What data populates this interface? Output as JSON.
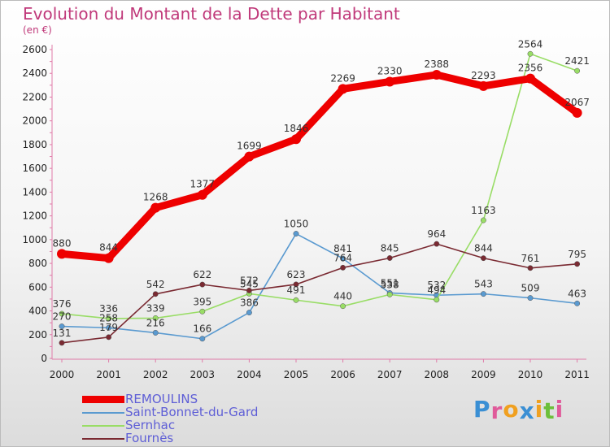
{
  "title": "Evolution du Montant de la Dette par Habitant",
  "subtitle": "(en €)",
  "logo": {
    "text": "Proxiti",
    "letter_colors": [
      "#3a8fd4",
      "#e05a9a",
      "#f0a020",
      "#3a8fd4",
      "#f0a020",
      "#6cbf3a",
      "#e05a9a"
    ]
  },
  "chart_data": {
    "type": "line",
    "x": [
      "2000",
      "2001",
      "2002",
      "2003",
      "2004",
      "2005",
      "2006",
      "2007",
      "2008",
      "2009",
      "2010",
      "2011"
    ],
    "ylim": [
      0,
      2600
    ],
    "yticks": [
      "0",
      "200",
      "400",
      "600",
      "800",
      "1000",
      "1200",
      "1400",
      "1600",
      "1800",
      "2000",
      "2200",
      "2400",
      "2600"
    ],
    "grid": false,
    "legend_position": "bottom-left",
    "series": [
      {
        "name": "REMOULINS",
        "color": "#ee0000",
        "values": [
          880,
          844,
          1268,
          1377,
          1699,
          1846,
          2269,
          2330,
          2388,
          2293,
          2356,
          2067
        ],
        "labels": [
          "880",
          "844",
          "1268",
          "1377",
          "1699",
          "1846",
          "2269",
          "2330",
          "2388",
          "2293",
          "2356",
          "2067"
        ]
      },
      {
        "name": "Saint-Bonnet-du-Gard",
        "color": "#5a9ad0",
        "values": [
          270,
          258,
          216,
          166,
          386,
          1050,
          841,
          551,
          532,
          543,
          509,
          463
        ],
        "labels": [
          "270",
          "258",
          "216",
          "166",
          "386",
          "1050",
          "841",
          "551",
          "532",
          "543",
          "509",
          "463"
        ]
      },
      {
        "name": "Sernhac",
        "color": "#99dd66",
        "values": [
          376,
          336,
          339,
          395,
          545,
          491,
          440,
          538,
          494,
          1163,
          2564,
          2421
        ],
        "labels": [
          "376",
          "336",
          "339",
          "395",
          "545",
          "491",
          "440",
          "538",
          "494",
          "1163",
          "2564",
          "2421"
        ]
      },
      {
        "name": "Fournès",
        "color": "#7a2a32",
        "values": [
          131,
          179,
          542,
          622,
          572,
          623,
          764,
          845,
          964,
          844,
          761,
          795
        ],
        "labels": [
          "131",
          "179",
          "542",
          "622",
          "572",
          "623",
          "764",
          "845",
          "964",
          "844",
          "761",
          "795"
        ]
      }
    ]
  }
}
